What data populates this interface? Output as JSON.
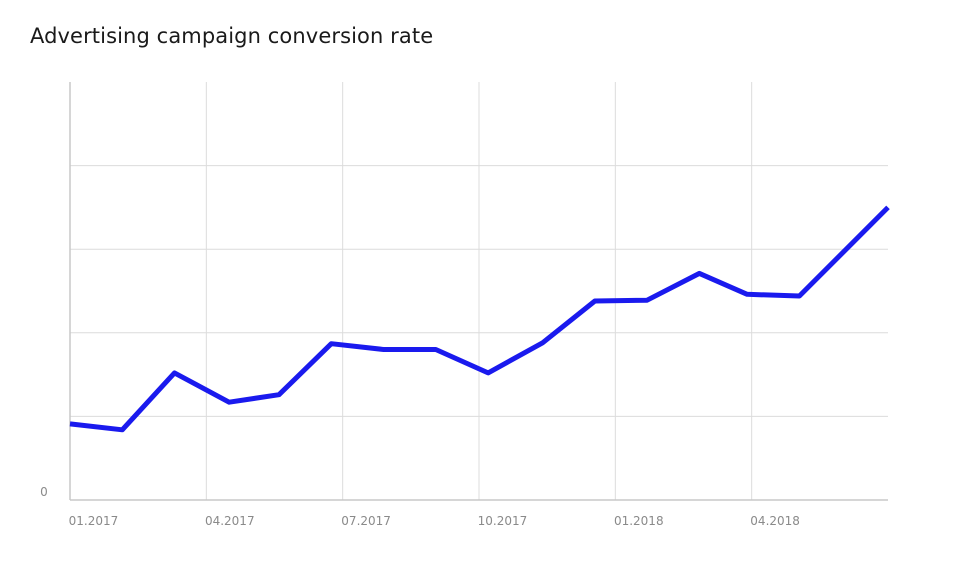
{
  "title": "Advertising campaign conversion rate",
  "chart_data": {
    "type": "line",
    "title": "Advertising campaign conversion rate",
    "xlabel": "",
    "ylabel": "",
    "x_tick_labels": [
      "01.2017",
      "04.2017",
      "07.2017",
      "10.2017",
      "01.2018",
      "04.2018"
    ],
    "y_tick_labels": [
      "0"
    ],
    "ylim": [
      0,
      5
    ],
    "xlim": [
      0,
      18
    ],
    "y_gridlines": [
      1,
      2,
      3,
      4
    ],
    "x_gridlines": [
      3,
      6,
      9,
      12,
      15
    ],
    "grid": true,
    "series": [
      {
        "color": "#1a1aee",
        "x": [
          0,
          1.15,
          2.3,
          3.5,
          4.6,
          5.75,
          6.9,
          8.05,
          9.2,
          10.4,
          11.55,
          12.7,
          13.85,
          14.9,
          16.05,
          18
        ],
        "values": [
          0.91,
          0.84,
          1.52,
          1.17,
          1.26,
          1.87,
          1.8,
          1.8,
          1.52,
          1.88,
          2.38,
          2.39,
          2.71,
          2.46,
          2.44,
          3.5
        ]
      }
    ],
    "line_color": "#1a1aee",
    "grid_color": "#dcdcdc",
    "axis_color": "#c8c8c8"
  }
}
